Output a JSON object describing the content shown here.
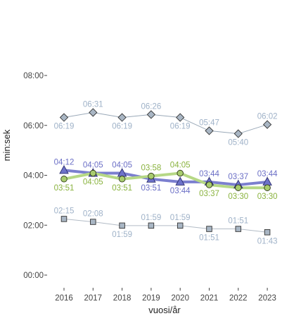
{
  "chart_data": {
    "type": "line",
    "title": "",
    "xlabel": "vuosi/år",
    "ylabel": "min:sek",
    "x": [
      "2016",
      "2017",
      "2018",
      "2019",
      "2020",
      "2021",
      "2022",
      "2023"
    ],
    "yticks": [
      "00:00",
      "02:00",
      "04:00",
      "06:00",
      "08:00"
    ],
    "ylim_seconds": [
      0,
      480
    ],
    "grid": false,
    "legend": "none",
    "series": [
      {
        "marker": "diamond",
        "color": "#9aa9b8",
        "marker_fill": "#a9b6c4",
        "label_color": "#9fb2c8",
        "line_width": 1,
        "values_seconds": [
          379,
          391,
          379,
          386,
          379,
          347,
          340,
          362
        ],
        "labels": [
          "06:19",
          "06:31",
          "06:19",
          "06:26",
          "06:19",
          "05:47",
          "05:40",
          "06:02"
        ],
        "label_pos": [
          "below",
          "above",
          "below",
          "above",
          "below",
          "above",
          "below",
          "above"
        ]
      },
      {
        "marker": "triangle",
        "color": "#7b7fcf",
        "marker_fill": "#6d72c9",
        "label_color": "#6b6fc6",
        "line_width": 4,
        "values_seconds": [
          252,
          245,
          245,
          231,
          224,
          224,
          217,
          224
        ],
        "labels": [
          "04:12",
          "04:05",
          "04:05",
          "03:51",
          "03:44",
          "03:44",
          "03:37",
          "03:44"
        ],
        "label_pos": [
          "above",
          "above",
          "above",
          "below",
          "below",
          "above",
          "above",
          "above"
        ]
      },
      {
        "marker": "circle",
        "color": "#b6d886",
        "marker_fill": "#a8cc6e",
        "label_color": "#8ab33f",
        "line_width": 4,
        "values_seconds": [
          231,
          245,
          231,
          238,
          245,
          217,
          210,
          210
        ],
        "labels": [
          "03:51",
          "04:05",
          "03:51",
          "03:58",
          "04:05",
          "03:37",
          "03:30",
          "03:30"
        ],
        "label_pos": [
          "below",
          "below",
          "below",
          "above",
          "above",
          "below",
          "below",
          "below"
        ]
      },
      {
        "marker": "square",
        "color": "#b3bcc6",
        "marker_fill": "#a9b6c4",
        "label_color": "#9fb2c8",
        "line_width": 1,
        "values_seconds": [
          135,
          128,
          119,
          119,
          119,
          111,
          111,
          103
        ],
        "labels": [
          "02:15",
          "02:08",
          "01:59",
          "01:59",
          "01:59",
          "01:51",
          "01:51",
          "01:43"
        ],
        "label_pos": [
          "above",
          "above",
          "below",
          "above",
          "above",
          "below",
          "above",
          "below"
        ]
      }
    ]
  }
}
